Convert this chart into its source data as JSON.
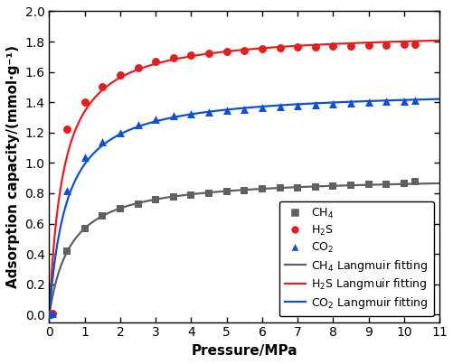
{
  "xlabel": "Pressure/MPa",
  "ylabel": "Adsorption capacity/(mmol·g⁻¹)",
  "xlim": [
    0,
    11
  ],
  "ylim": [
    -0.05,
    2.0
  ],
  "xticks": [
    0,
    1,
    2,
    3,
    4,
    5,
    6,
    7,
    8,
    9,
    10,
    11
  ],
  "yticks": [
    0.0,
    0.2,
    0.4,
    0.6,
    0.8,
    1.0,
    1.2,
    1.4,
    1.6,
    1.8,
    2.0
  ],
  "CH4_data_x": [
    0.0,
    0.5,
    1.0,
    1.5,
    2.0,
    2.5,
    3.0,
    3.5,
    4.0,
    4.5,
    5.0,
    5.5,
    6.0,
    6.5,
    7.0,
    7.5,
    8.0,
    8.5,
    9.0,
    9.5,
    10.0,
    10.3
  ],
  "CH4_data_y": [
    0.0,
    0.42,
    0.57,
    0.65,
    0.7,
    0.73,
    0.76,
    0.775,
    0.79,
    0.8,
    0.81,
    0.82,
    0.828,
    0.833,
    0.838,
    0.843,
    0.848,
    0.852,
    0.857,
    0.862,
    0.868,
    0.875
  ],
  "H2S_data_x": [
    0.0,
    0.1,
    0.5,
    1.0,
    1.5,
    2.0,
    2.5,
    3.0,
    3.5,
    4.0,
    4.5,
    5.0,
    5.5,
    6.0,
    6.5,
    7.0,
    7.5,
    8.0,
    8.5,
    9.0,
    9.5,
    10.0,
    10.3
  ],
  "H2S_data_y": [
    0.0,
    0.005,
    1.22,
    1.4,
    1.5,
    1.58,
    1.63,
    1.67,
    1.695,
    1.71,
    1.723,
    1.733,
    1.743,
    1.751,
    1.757,
    1.762,
    1.767,
    1.77,
    1.773,
    1.776,
    1.778,
    1.78,
    1.782
  ],
  "CO2_data_x": [
    0.0,
    0.1,
    0.5,
    1.0,
    1.5,
    2.0,
    2.5,
    3.0,
    3.5,
    4.0,
    4.5,
    5.0,
    5.5,
    6.0,
    6.5,
    7.0,
    7.5,
    8.0,
    8.5,
    9.0,
    9.5,
    10.0,
    10.3
  ],
  "CO2_data_y": [
    0.0,
    0.005,
    0.82,
    1.04,
    1.14,
    1.2,
    1.25,
    1.285,
    1.31,
    1.323,
    1.335,
    1.346,
    1.355,
    1.363,
    1.37,
    1.377,
    1.384,
    1.39,
    1.396,
    1.4,
    1.405,
    1.41,
    1.415
  ],
  "CH4_qmax": 1.1,
  "CH4_b": 1.2,
  "H2S_qmax": 1.85,
  "H2S_b": 18.0,
  "CO2_qmax": 1.52,
  "CO2_b": 8.0,
  "CH4_color": "#606060",
  "H2S_color": "#e02020",
  "CO2_color": "#1050d0",
  "marker_size": 7,
  "line_width": 1.6,
  "font_size_label": 11,
  "font_size_tick": 10,
  "font_size_legend": 9
}
